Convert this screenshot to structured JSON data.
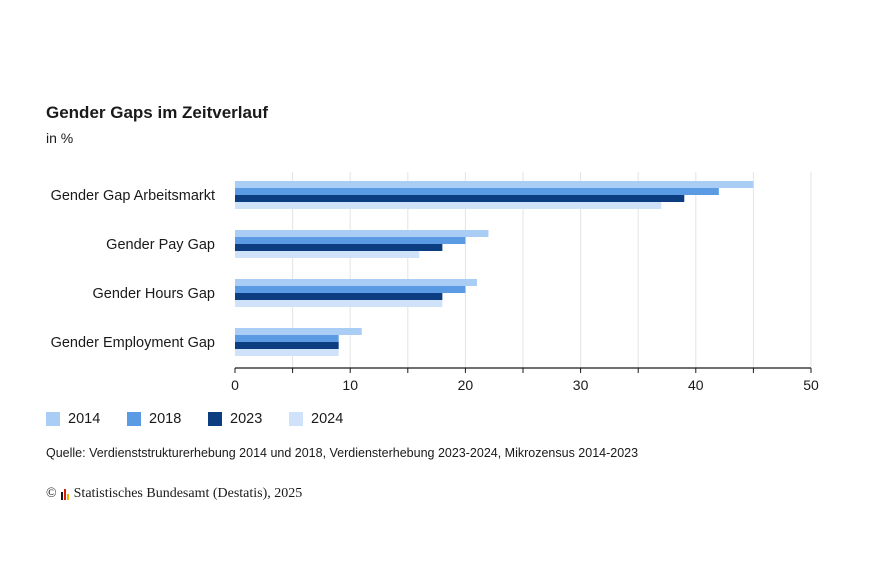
{
  "title": "Gender Gaps im Zeitverlauf",
  "subtitle": "in %",
  "source": "Quelle: Verdienststrukturerhebung 2014 und 2018, Verdiensterhebung 2023-2024, Mikrozensus 2014-2023",
  "copyright_symbol": "©",
  "copyright_text": "Statistisches Bundesamt (Destatis), 2025",
  "chart_data": {
    "type": "bar",
    "orientation": "horizontal",
    "categories": [
      "Gender Gap Arbeitsmarkt",
      "Gender Pay Gap",
      "Gender Hours Gap",
      "Gender Employment Gap"
    ],
    "series": [
      {
        "name": "2014",
        "color": "#a9cdf5",
        "values": [
          45,
          22,
          21,
          11
        ]
      },
      {
        "name": "2018",
        "color": "#5a9be3",
        "values": [
          42,
          20,
          20,
          9
        ]
      },
      {
        "name": "2023",
        "color": "#0b3d80",
        "values": [
          39,
          18,
          18,
          9
        ]
      },
      {
        "name": "2024",
        "color": "#cfe2fa",
        "values": [
          37,
          16,
          18,
          9
        ]
      }
    ],
    "xlim": [
      0,
      50
    ],
    "xticks": [
      "0",
      "10",
      "20",
      "30",
      "40",
      "50"
    ],
    "grid": true,
    "legend_position": "bottom-left"
  }
}
